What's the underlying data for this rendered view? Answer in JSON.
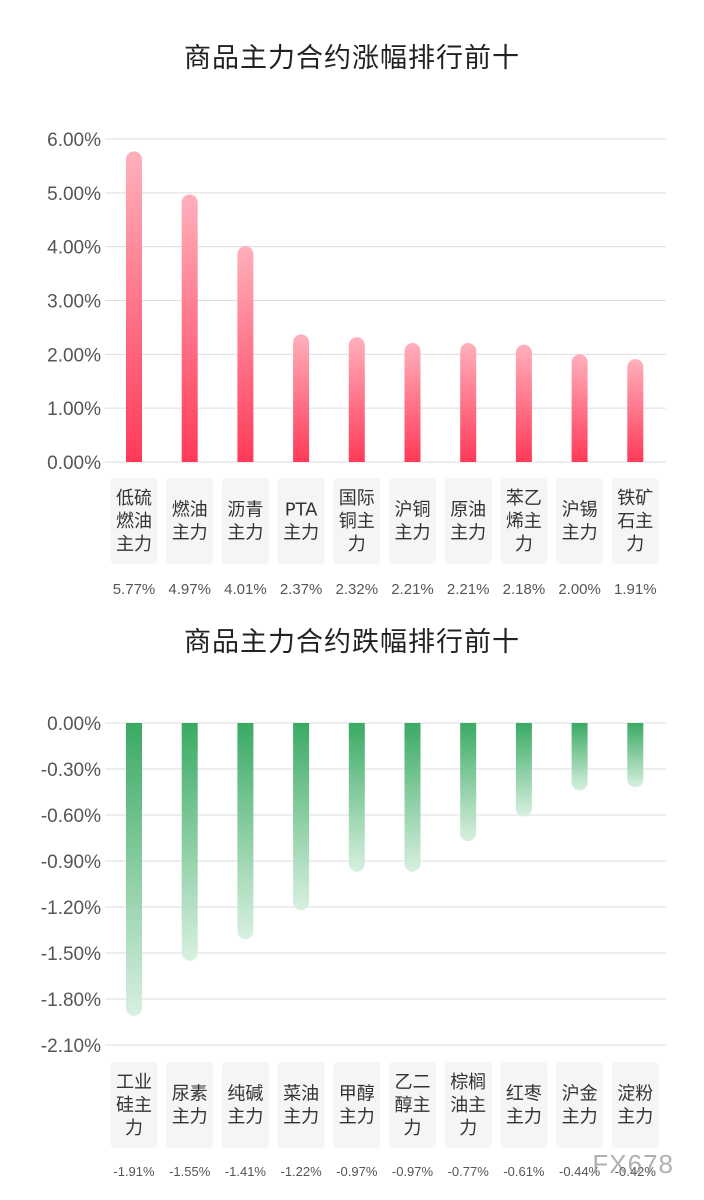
{
  "chart_data": [
    {
      "type": "bar",
      "title": "商品主力合约涨幅排行前十",
      "categories": [
        "低硫燃油主力",
        "燃油主力",
        "沥青主力",
        "PTA主力",
        "国际铜主力",
        "沪铜主力",
        "原油主力",
        "苯乙烯主力",
        "沪锡主力",
        "铁矿石主力"
      ],
      "values": [
        5.77,
        4.97,
        4.01,
        2.37,
        2.32,
        2.21,
        2.21,
        2.18,
        2.0,
        1.91
      ],
      "value_labels": [
        "5.77%",
        "4.97%",
        "4.01%",
        "2.37%",
        "2.32%",
        "2.21%",
        "2.21%",
        "2.18%",
        "2.00%",
        "1.91%"
      ],
      "yticks": [
        "6.00%",
        "5.00%",
        "4.00%",
        "3.00%",
        "2.00%",
        "1.00%",
        "0.00%"
      ],
      "ylim": [
        0,
        6
      ],
      "grid": true,
      "color": "#f53a5a"
    },
    {
      "type": "bar",
      "title": "商品主力合约跌幅排行前十",
      "categories": [
        "工业硅主力",
        "尿素主力",
        "纯碱主力",
        "菜油主力",
        "甲醇主力",
        "乙二醇主力",
        "棕榈油主力",
        "红枣主力",
        "沪金主力",
        "淀粉主力"
      ],
      "values": [
        -1.91,
        -1.55,
        -1.41,
        -1.22,
        -0.97,
        -0.97,
        -0.77,
        -0.61,
        -0.44,
        -0.42
      ],
      "value_labels": [
        "-1.91%",
        "-1.55%",
        "-1.41%",
        "-1.22%",
        "-0.97%",
        "-0.97%",
        "-0.77%",
        "-0.61%",
        "-0.44%",
        "-0.42%"
      ],
      "yticks": [
        "0.00%",
        "-0.30%",
        "-0.60%",
        "-0.90%",
        "-1.20%",
        "-1.50%",
        "-1.80%",
        "-2.10%"
      ],
      "ylim": [
        -2.1,
        0
      ],
      "grid": true,
      "color": "#3aaa64"
    }
  ],
  "watermark": "FX678"
}
